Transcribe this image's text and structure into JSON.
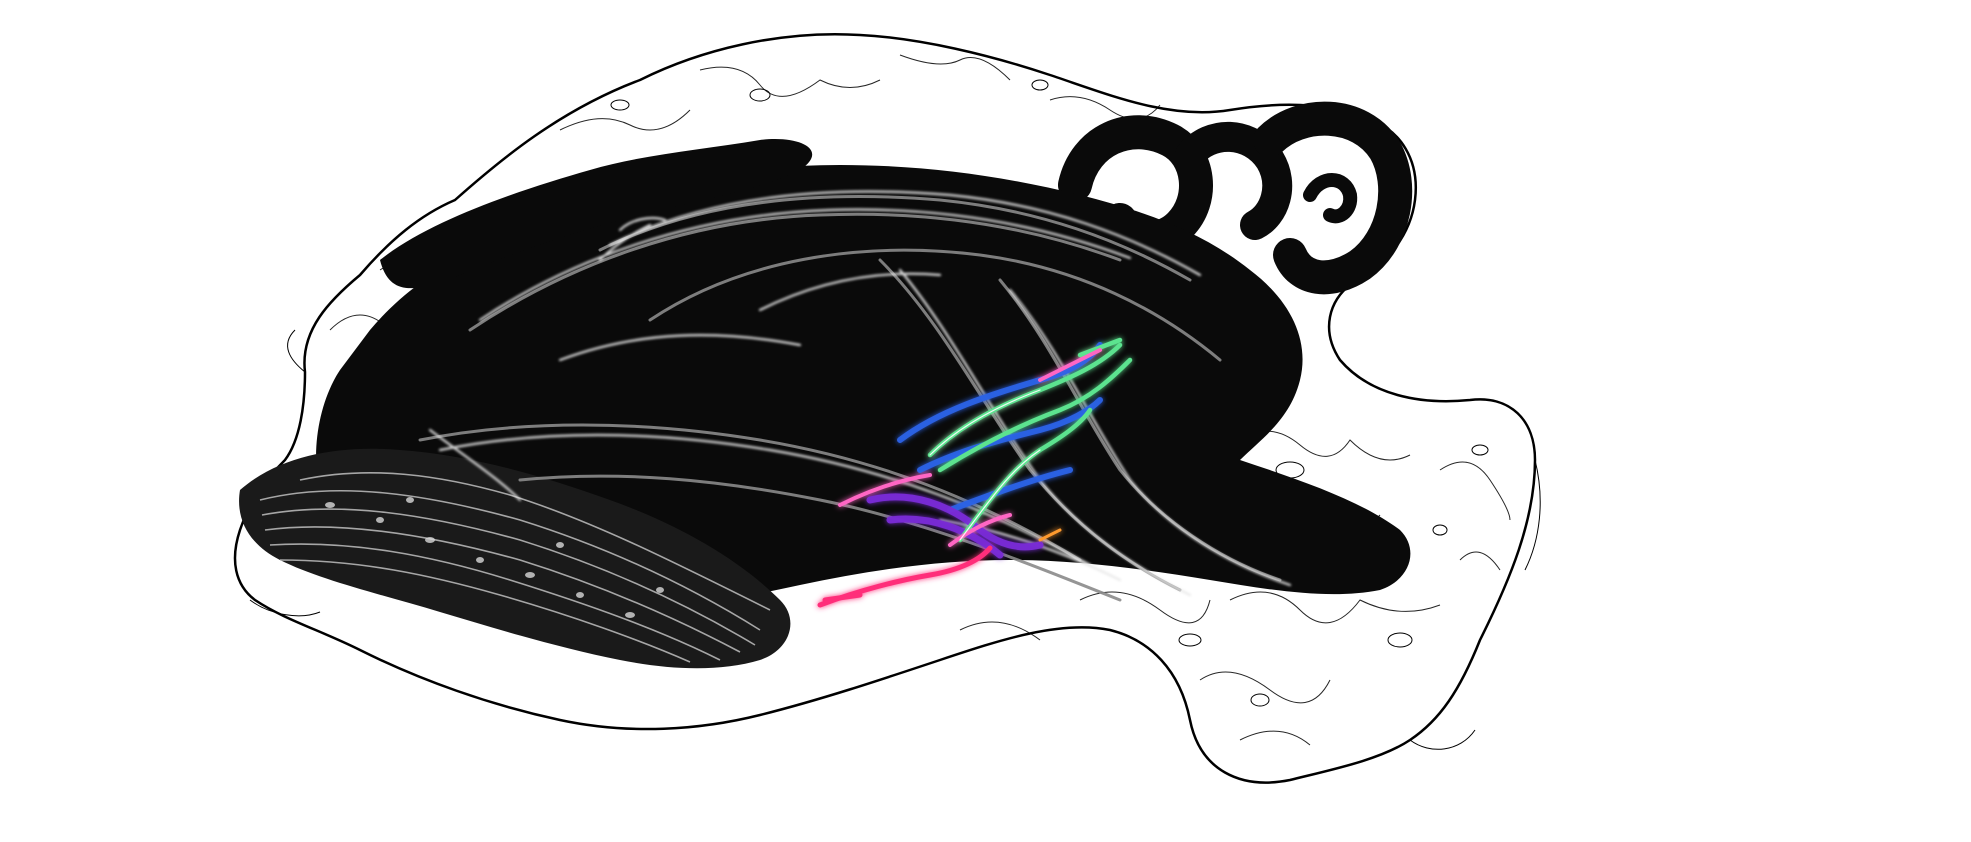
{
  "image": {
    "background_color": "#ffffff",
    "silhouette_color": "#0a0a0a",
    "outline_color": "#000000",
    "fiber_white": "#e8e8e8",
    "fiber_gray": "#8a8a8a",
    "tract_colors": {
      "green": "#5be38f",
      "blue": "#2b63e6",
      "purple": "#7a2bd6",
      "magenta": "#ff2f7a",
      "pink": "#ff66c4",
      "orange": "#ff9a2e"
    }
  }
}
